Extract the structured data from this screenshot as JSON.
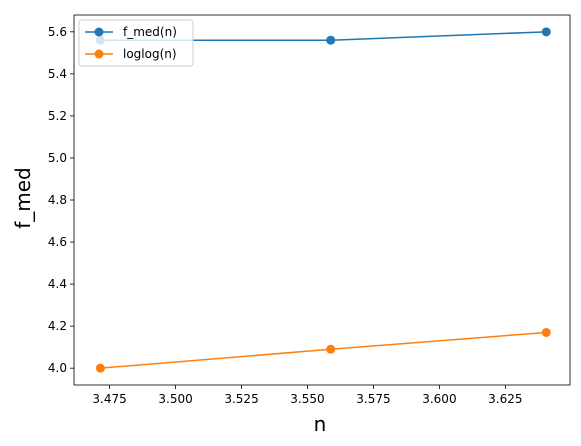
{
  "chart_data": {
    "type": "line",
    "xlabel": "n",
    "ylabel": "f_med",
    "xlim": [
      3.4615,
      3.6495
    ],
    "ylim": [
      3.92,
      5.68
    ],
    "xticks": [
      3.475,
      3.5,
      3.525,
      3.55,
      3.575,
      3.6,
      3.625
    ],
    "xtick_labels": [
      "3.475",
      "3.500",
      "3.525",
      "3.550",
      "3.575",
      "3.600",
      "3.625"
    ],
    "yticks": [
      4.0,
      4.2,
      4.4,
      4.6,
      4.8,
      5.0,
      5.2,
      5.4,
      5.6
    ],
    "ytick_labels": [
      "4.0",
      "4.2",
      "4.4",
      "4.6",
      "4.8",
      "5.0",
      "5.2",
      "5.4",
      "5.6"
    ],
    "grid": false,
    "legend_position": "top-left",
    "x": [
      3.4715,
      3.5588,
      3.6405
    ],
    "series": [
      {
        "name": "f_med(n)",
        "color": "#1f77b4",
        "values": [
          5.56,
          5.56,
          5.6
        ]
      },
      {
        "name": "loglog(n)",
        "color": "#ff7f0e",
        "values": [
          4.0,
          4.09,
          4.17
        ]
      }
    ]
  }
}
